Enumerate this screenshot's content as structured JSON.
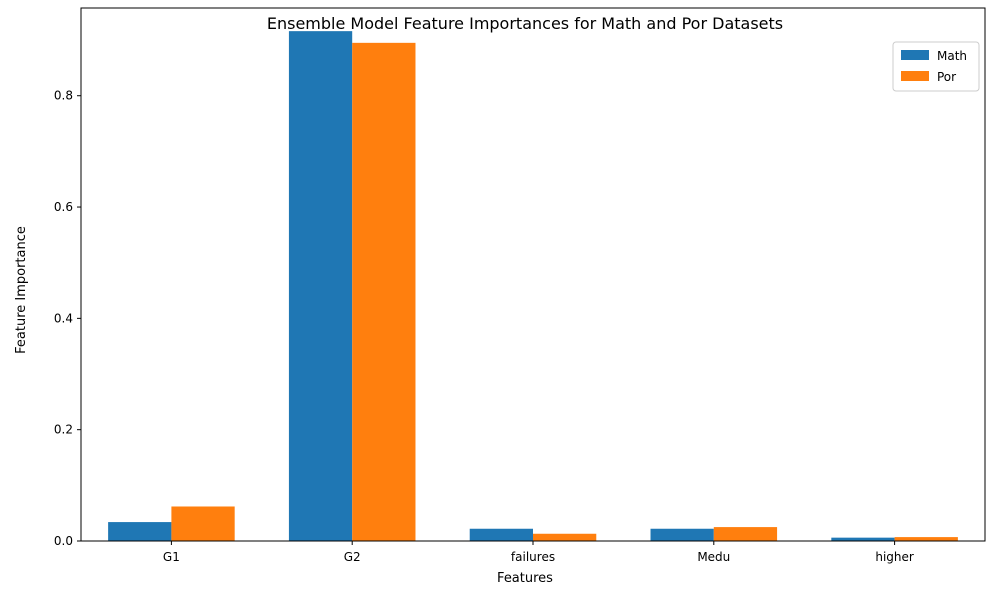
{
  "chart_data": {
    "type": "bar",
    "title": "Ensemble Model Feature Importances for Math and Por Datasets",
    "xlabel": "Features",
    "ylabel": "Feature Importance",
    "categories": [
      "G1",
      "G2",
      "failures",
      "Medu",
      "higher"
    ],
    "series": [
      {
        "name": "Math",
        "color": "#1f77b4",
        "values": [
          0.034,
          0.916,
          0.022,
          0.022,
          0.006
        ]
      },
      {
        "name": "Por",
        "color": "#ff7f0e",
        "values": [
          0.062,
          0.895,
          0.013,
          0.025,
          0.007
        ]
      }
    ],
    "ylim": [
      0,
      0.9576
    ],
    "yticks": [
      0.0,
      0.2,
      0.4,
      0.6,
      0.8
    ],
    "ytick_labels": [
      "0.0",
      "0.2",
      "0.4",
      "0.6",
      "0.8"
    ],
    "grid": false,
    "legend": "top-right"
  }
}
